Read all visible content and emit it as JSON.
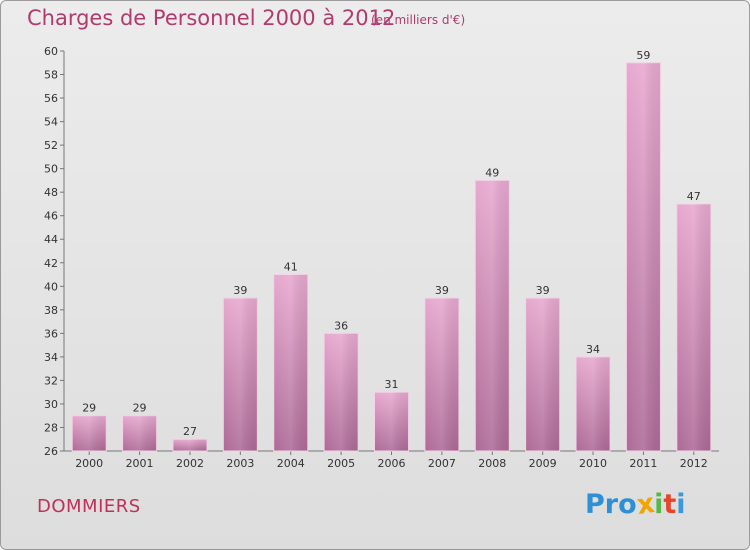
{
  "header": {
    "title": "Charges de Personnel 2000 à 2012",
    "subtitle": "(en milliers d'€)"
  },
  "footer": {
    "commune": "DOMMIERS",
    "logo_letters": [
      "P",
      "r",
      "o",
      "x",
      "i",
      "t",
      "i"
    ],
    "logo_colors": [
      "#2d8fd5",
      "#2d8fd5",
      "#2d8fd5",
      "#f0a500",
      "#56b947",
      "#e5452b",
      "#3a9ad9"
    ]
  },
  "colors": {
    "bar_top": "#e7a8cf",
    "bar_bottom": "#ad6a96",
    "title": "#b23a6e",
    "commune": "#c0305a"
  },
  "chart_data": {
    "type": "bar",
    "title": "Charges de Personnel 2000 à 2012",
    "subtitle": "(en milliers d'€)",
    "xlabel": "",
    "ylabel": "",
    "categories": [
      "2000",
      "2001",
      "2002",
      "2003",
      "2004",
      "2005",
      "2006",
      "2007",
      "2008",
      "2009",
      "2010",
      "2011",
      "2012"
    ],
    "values": [
      29,
      29,
      27,
      39,
      41,
      36,
      31,
      39,
      49,
      39,
      34,
      59,
      47
    ],
    "ylim": [
      26,
      60
    ],
    "yticks": [
      26,
      28,
      30,
      32,
      34,
      36,
      38,
      40,
      42,
      44,
      46,
      48,
      50,
      52,
      54,
      56,
      58,
      60
    ],
    "grid": false,
    "legend": "none"
  }
}
